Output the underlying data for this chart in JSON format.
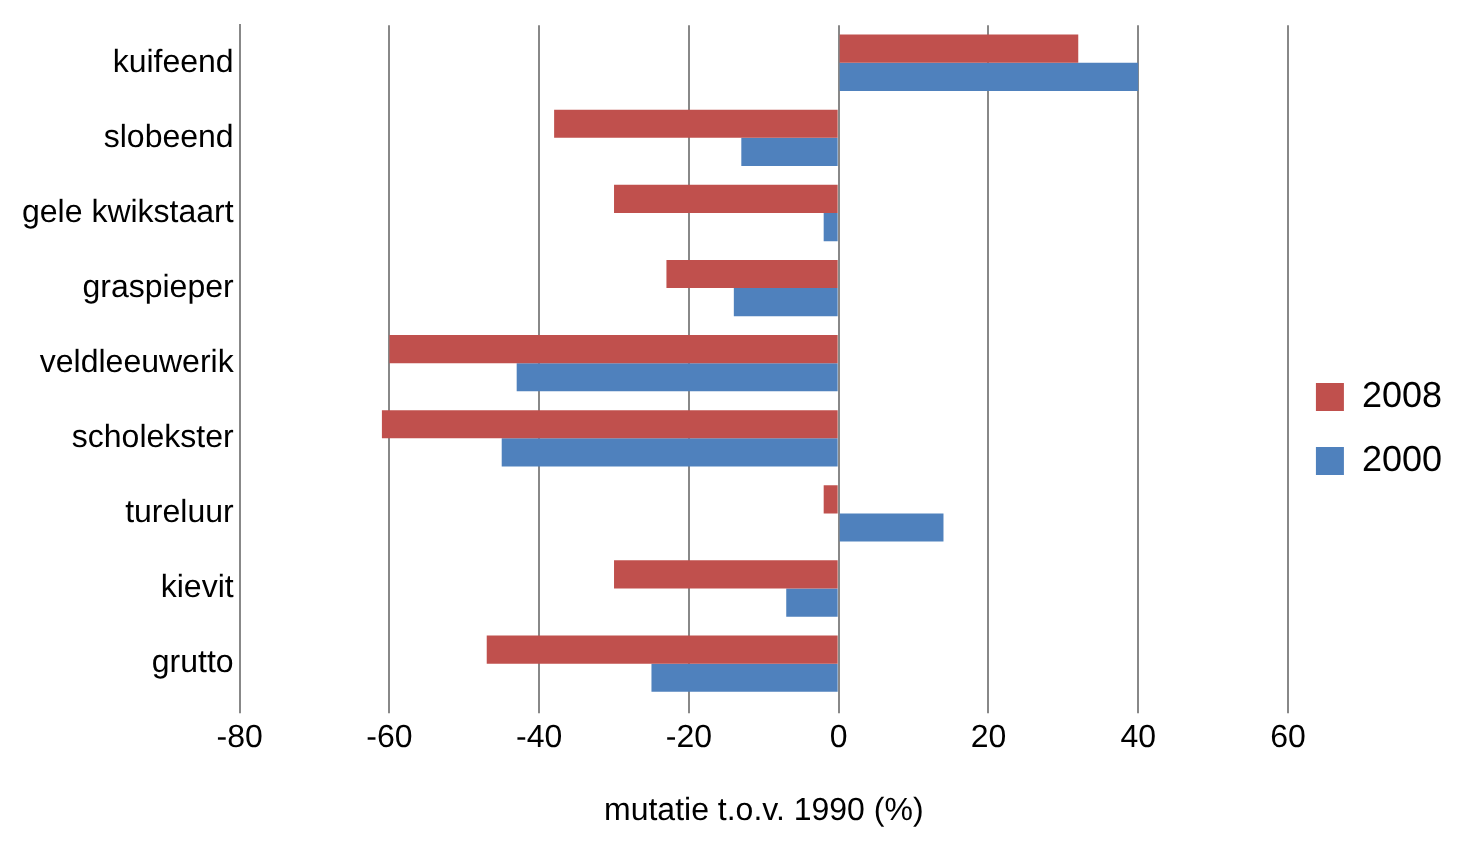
{
  "chart_data": {
    "type": "bar",
    "orientation": "horizontal",
    "xlabel": "mutatie t.o.v. 1990 (%)",
    "categories": [
      "kuifeend",
      "slobeend",
      "gele kwikstaart",
      "graspieper",
      "veldleeuwerik",
      "scholekster",
      "tureluur",
      "kievit",
      "grutto"
    ],
    "series": [
      {
        "name": "2008",
        "color": "#c0504d",
        "values": [
          32,
          -38,
          -30,
          -23,
          -60,
          -61,
          -2,
          -30,
          -47
        ]
      },
      {
        "name": "2000",
        "color": "#4f81bd",
        "values": [
          40,
          -13,
          -2,
          -14,
          -43,
          -45,
          14,
          -7,
          -25
        ]
      }
    ],
    "xlim": [
      -80,
      60
    ],
    "xticks": [
      -80,
      -60,
      -40,
      -20,
      0,
      20,
      40,
      60
    ],
    "grid": "x",
    "legend": "right"
  }
}
